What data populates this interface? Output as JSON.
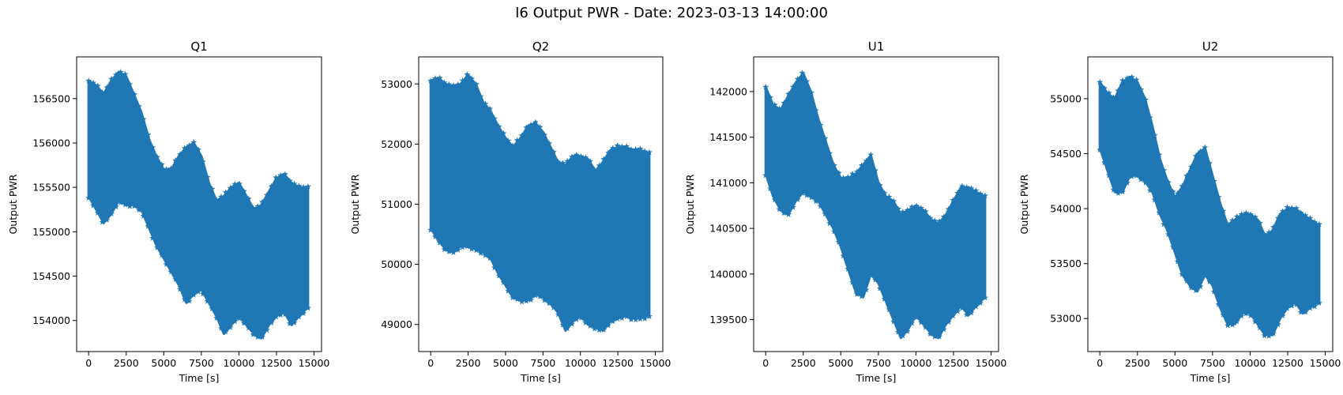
{
  "figure": {
    "title": "I6 Output PWR - Date: 2023-03-13 14:00:00"
  },
  "chart_data": [
    {
      "type": "scatter",
      "title": "Q1",
      "xlabel": "Time [s]",
      "ylabel": "Output PWR",
      "color": "#1f77b4",
      "marker": "star",
      "xlim": [
        -800,
        15500
      ],
      "ylim": [
        153650,
        156970
      ],
      "xticks": [
        0,
        2500,
        5000,
        7500,
        10000,
        12500,
        15000
      ],
      "yticks": [
        154000,
        154500,
        155000,
        155500,
        156000,
        156500
      ],
      "grid": false,
      "band": {
        "x": [
          0,
          500,
          1000,
          1500,
          2000,
          2500,
          3000,
          3500,
          4000,
          4500,
          5000,
          5500,
          6000,
          6500,
          7000,
          7500,
          8000,
          8500,
          9000,
          9500,
          10000,
          10500,
          11000,
          11500,
          12000,
          12500,
          13000,
          13500,
          14000,
          14600
        ],
        "upper": [
          156700,
          156650,
          156550,
          156700,
          156800,
          156750,
          156550,
          156350,
          156050,
          155850,
          155700,
          155700,
          155850,
          155950,
          156000,
          155850,
          155550,
          155350,
          155400,
          155500,
          155550,
          155400,
          155250,
          155300,
          155450,
          155600,
          155650,
          155550,
          155500,
          155500
        ],
        "lower": [
          155400,
          155250,
          155100,
          155200,
          155350,
          155300,
          155300,
          155250,
          155050,
          154850,
          154700,
          154550,
          154400,
          154200,
          154300,
          154350,
          154200,
          154050,
          153850,
          153950,
          154050,
          153950,
          153850,
          153800,
          153950,
          154050,
          154100,
          153950,
          154050,
          154150
        ]
      }
    },
    {
      "type": "scatter",
      "title": "Q2",
      "xlabel": "Time [s]",
      "ylabel": "Output PWR",
      "color": "#1f77b4",
      "marker": "star",
      "xlim": [
        -800,
        15500
      ],
      "ylim": [
        48550,
        53450
      ],
      "xticks": [
        0,
        2500,
        5000,
        7500,
        10000,
        12500,
        15000
      ],
      "yticks": [
        49000,
        50000,
        51000,
        52000,
        53000
      ],
      "grid": false,
      "band": {
        "x": [
          0,
          500,
          1000,
          1500,
          2000,
          2500,
          3000,
          3500,
          4000,
          4500,
          5000,
          5500,
          6000,
          6500,
          7000,
          7500,
          8000,
          8500,
          9000,
          9500,
          10000,
          10500,
          11000,
          11500,
          12000,
          12500,
          13000,
          13500,
          14000,
          14600
        ],
        "upper": [
          53050,
          53100,
          53000,
          52950,
          53000,
          53150,
          53000,
          52700,
          52550,
          52300,
          52100,
          51950,
          52100,
          52300,
          52350,
          52200,
          51950,
          51700,
          51650,
          51800,
          51800,
          51750,
          51550,
          51700,
          51900,
          51950,
          51950,
          51900,
          51900,
          51850
        ],
        "lower": [
          50600,
          50400,
          50250,
          50200,
          50300,
          50300,
          50250,
          50200,
          50100,
          49850,
          49650,
          49450,
          49400,
          49400,
          49500,
          49450,
          49350,
          49200,
          48900,
          49050,
          49150,
          49000,
          48950,
          48900,
          49050,
          49100,
          49150,
          49100,
          49100,
          49150
        ]
      }
    },
    {
      "type": "scatter",
      "title": "U1",
      "xlabel": "Time [s]",
      "ylabel": "Output PWR",
      "color": "#1f77b4",
      "marker": "star",
      "xlim": [
        -800,
        15500
      ],
      "ylim": [
        139150,
        142380
      ],
      "xticks": [
        0,
        2500,
        5000,
        7500,
        10000,
        12500,
        15000
      ],
      "yticks": [
        139500,
        140000,
        140500,
        141000,
        141500,
        142000
      ],
      "grid": false,
      "band": {
        "x": [
          0,
          500,
          1000,
          1500,
          2000,
          2500,
          3000,
          3500,
          4000,
          4500,
          5000,
          5500,
          6000,
          6500,
          7000,
          7500,
          8000,
          8500,
          9000,
          9500,
          10000,
          10500,
          11000,
          11500,
          12000,
          12500,
          13000,
          13500,
          14000,
          14600
        ],
        "upper": [
          142050,
          141850,
          141800,
          141950,
          142100,
          142200,
          142000,
          141700,
          141450,
          141200,
          141050,
          141050,
          141100,
          141200,
          141300,
          141000,
          140850,
          140800,
          140650,
          140700,
          140750,
          140700,
          140600,
          140550,
          140650,
          140800,
          140950,
          140950,
          140900,
          140850
        ],
        "lower": [
          141100,
          140850,
          140700,
          140650,
          140800,
          140900,
          140850,
          140800,
          140650,
          140500,
          140300,
          140050,
          139800,
          139750,
          140000,
          139900,
          139700,
          139500,
          139300,
          139400,
          139550,
          139450,
          139350,
          139300,
          139450,
          139550,
          139650,
          139550,
          139650,
          139750
        ]
      }
    },
    {
      "type": "scatter",
      "title": "U2",
      "xlabel": "Time [s]",
      "ylabel": "Output PWR",
      "color": "#1f77b4",
      "marker": "star",
      "xlim": [
        -800,
        15500
      ],
      "ylim": [
        52700,
        55380
      ],
      "xticks": [
        0,
        2500,
        5000,
        7500,
        10000,
        12500,
        15000
      ],
      "yticks": [
        53000,
        53500,
        54000,
        54500,
        55000
      ],
      "grid": false,
      "band": {
        "x": [
          0,
          500,
          1000,
          1500,
          2000,
          2500,
          3000,
          3500,
          4000,
          4500,
          5000,
          5500,
          6000,
          6500,
          7000,
          7500,
          8000,
          8500,
          9000,
          9500,
          10000,
          10500,
          11000,
          11500,
          12000,
          12500,
          13000,
          13500,
          14000,
          14600
        ],
        "upper": [
          55150,
          55050,
          55000,
          55150,
          55200,
          55150,
          55000,
          54750,
          54450,
          54250,
          54100,
          54200,
          54350,
          54500,
          54550,
          54300,
          54050,
          53850,
          53900,
          53950,
          53950,
          53900,
          53750,
          53800,
          53950,
          54000,
          54000,
          53950,
          53900,
          53850
        ],
        "lower": [
          54550,
          54350,
          54150,
          54150,
          54300,
          54300,
          54250,
          54150,
          53950,
          53800,
          53600,
          53400,
          53300,
          53250,
          53400,
          53300,
          53100,
          52950,
          52950,
          53050,
          53050,
          52950,
          52850,
          52850,
          53000,
          53100,
          53150,
          53050,
          53100,
          53150
        ]
      }
    }
  ]
}
